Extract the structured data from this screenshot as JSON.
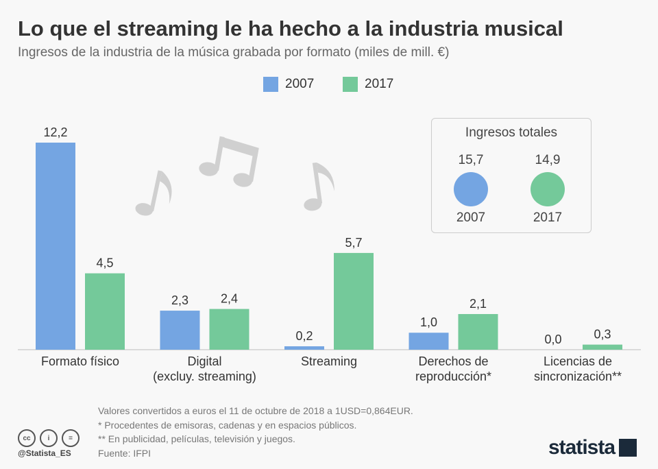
{
  "title": "Lo que el streaming le ha hecho a la industria musical",
  "subtitle": "Ingresos de la industria de la música grabada por formato (miles de mill. €)",
  "colors": {
    "y2007": "#74a5e2",
    "y2017": "#74c99a"
  },
  "chart_data": {
    "type": "bar",
    "categories": [
      "Formato físico",
      "Digital\n(excluy. streaming)",
      "Streaming",
      "Derechos de\nreproducción*",
      "Licencias de\nsincronización**"
    ],
    "category_lines": [
      [
        "Formato físico"
      ],
      [
        "Digital",
        "(excluy. streaming)"
      ],
      [
        "Streaming"
      ],
      [
        "Derechos de",
        "reproducción*"
      ],
      [
        "Licencias de",
        "sincronización**"
      ]
    ],
    "series": [
      {
        "name": "2007",
        "values": [
          12.2,
          2.3,
          0.2,
          1.0,
          0.0
        ],
        "labels": [
          "12,2",
          "2,3",
          "0,2",
          "1,0",
          "0,0"
        ]
      },
      {
        "name": "2017",
        "values": [
          4.5,
          2.4,
          5.7,
          2.1,
          0.3
        ],
        "labels": [
          "4,5",
          "2,4",
          "5,7",
          "2,1",
          "0,3"
        ]
      }
    ],
    "ylim": [
      0,
      12.2
    ],
    "legend": "top-center",
    "grid": false
  },
  "totals": {
    "title": "Ingresos totales",
    "items": [
      {
        "year": "2007",
        "value": "15,7"
      },
      {
        "year": "2017",
        "value": "14,9"
      }
    ]
  },
  "footer": {
    "notes": [
      "Valores convertidos a euros el 11 de octubre de 2018 a 1USD=0,864EUR.",
      "*   Procedentes de emisoras, cadenas y en espacios públicos.",
      "** En publicidad, películas, televisión y juegos.",
      "Fuente: IFPI"
    ],
    "handle": "@Statista_ES",
    "logo": "statista"
  }
}
